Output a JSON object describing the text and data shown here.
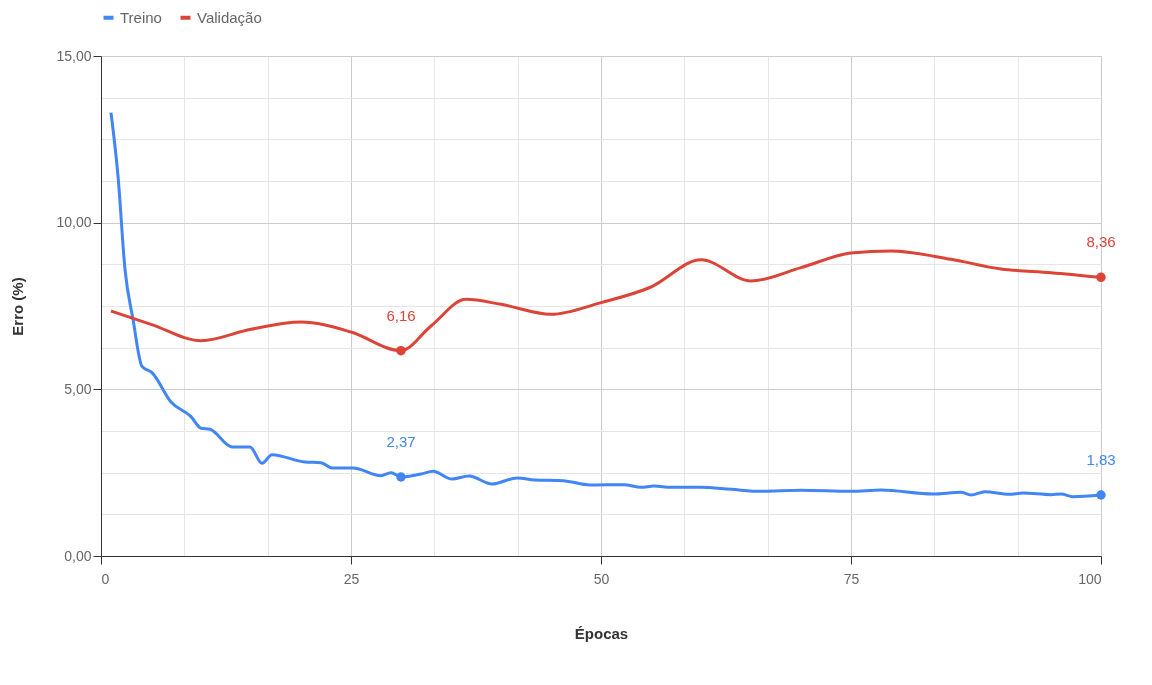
{
  "chart_data": {
    "type": "line",
    "xlabel": "Épocas",
    "ylabel": "Erro (%)",
    "legend": "top",
    "grid": true,
    "marker": "none",
    "line_style": "solid",
    "xlim": [
      0,
      100
    ],
    "ylim": [
      0,
      15
    ],
    "xticks": [
      0,
      {
        "value": 8.33,
        "label": null
      },
      {
        "value": 16.67,
        "label": null
      },
      25,
      {
        "value": 33.33,
        "label": null
      },
      {
        "value": 41.67,
        "label": null
      },
      50,
      {
        "value": 58.33,
        "label": null
      },
      {
        "value": 66.67,
        "label": null
      },
      75,
      {
        "value": 83.33,
        "label": null
      },
      {
        "value": 91.67,
        "label": null
      },
      100
    ],
    "yticks": [
      {
        "value": 0,
        "label": "0,00"
      },
      {
        "value": 1.25,
        "label": null
      },
      {
        "value": 2.5,
        "label": null
      },
      {
        "value": 3.75,
        "label": null
      },
      {
        "value": 5,
        "label": "5,00"
      },
      {
        "value": 6.25,
        "label": null
      },
      {
        "value": 7.5,
        "label": null
      },
      {
        "value": 8.75,
        "label": null
      },
      {
        "value": 10,
        "label": "10,00"
      },
      {
        "value": 11.25,
        "label": null
      },
      {
        "value": 12.5,
        "label": null
      },
      {
        "value": 13.75,
        "label": null
      },
      {
        "value": 15,
        "label": "15,00"
      }
    ],
    "series": [
      {
        "name": "Treino",
        "color": "#4285f4",
        "x": [
          1,
          1.7,
          2.4,
          3.2,
          4.1,
          5.1,
          7,
          9,
          10,
          10.9,
          13.1,
          14.9,
          16.1,
          17.1,
          20.4,
          22,
          23.1,
          25.2,
          28,
          29,
          30,
          32,
          33.2,
          35.1,
          36.8,
          39.1,
          41.6,
          43.4,
          46.2,
          48.9,
          52.3,
          54,
          55.3,
          57,
          60,
          63,
          66,
          70,
          75,
          78,
          83.2,
          86,
          87,
          88.4,
          90.8,
          92.2,
          95,
          96,
          97.2,
          100
        ],
        "values": [
          13.3,
          11.4,
          8.6,
          7.1,
          5.69,
          5.5,
          4.62,
          4.18,
          3.83,
          3.8,
          3.27,
          3.27,
          2.78,
          3.04,
          2.82,
          2.8,
          2.64,
          2.64,
          2.41,
          2.5,
          2.37,
          2.46,
          2.54,
          2.31,
          2.4,
          2.16,
          2.34,
          2.28,
          2.26,
          2.13,
          2.14,
          2.06,
          2.1,
          2.06,
          2.06,
          2.0,
          1.94,
          1.97,
          1.94,
          1.98,
          1.86,
          1.91,
          1.83,
          1.93,
          1.85,
          1.89,
          1.84,
          1.86,
          1.78,
          1.83
        ],
        "value_labels": [
          null,
          null,
          null,
          null,
          null,
          null,
          null,
          null,
          null,
          null,
          null,
          null,
          null,
          null,
          null,
          null,
          null,
          null,
          null,
          null,
          "2,37",
          null,
          null,
          null,
          null,
          null,
          null,
          null,
          null,
          null,
          null,
          null,
          null,
          null,
          null,
          null,
          null,
          null,
          null,
          null,
          null,
          null,
          null,
          null,
          null,
          null,
          null,
          null,
          null,
          "1,83"
        ]
      },
      {
        "name": "Validação",
        "color": "#db4437",
        "x": [
          1,
          5,
          10,
          15,
          20,
          25,
          30,
          33,
          36.5,
          40,
          45,
          50,
          55,
          60,
          65,
          70,
          75,
          79,
          85,
          90,
          95,
          100
        ],
        "values": [
          7.35,
          6.95,
          6.46,
          6.8,
          7.02,
          6.72,
          6.16,
          6.9,
          7.7,
          7.55,
          7.25,
          7.6,
          8.07,
          8.89,
          8.25,
          8.65,
          9.09,
          9.15,
          8.9,
          8.61,
          8.5,
          8.36
        ],
        "value_labels": [
          null,
          null,
          null,
          null,
          null,
          null,
          "6,16",
          null,
          null,
          null,
          null,
          null,
          null,
          null,
          null,
          null,
          null,
          null,
          null,
          null,
          null,
          "8,36"
        ]
      }
    ]
  }
}
